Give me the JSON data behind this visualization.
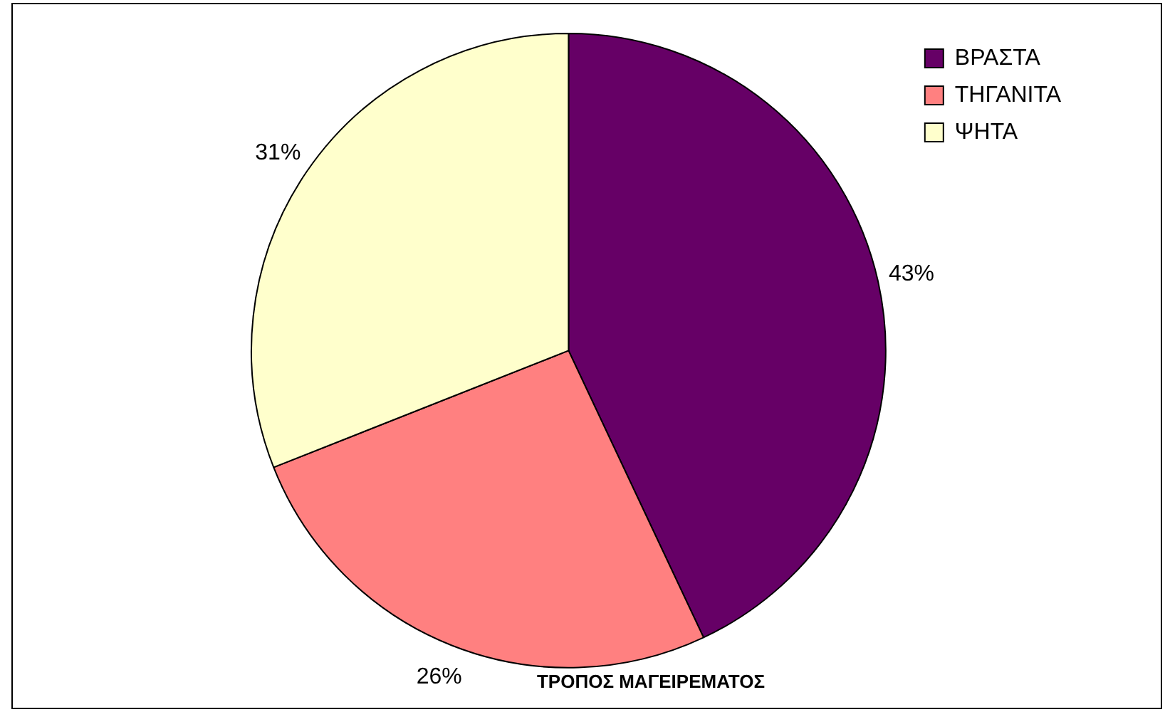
{
  "chart_data": {
    "type": "pie",
    "title": "ΤΡΟΠΟΣ ΜΑΓΕΙΡΕΜΑΤΟΣ",
    "categories": [
      "ΒΡΑΣΤΑ",
      "ΤΗΓΑΝΙΤΑ",
      "ΨΗΤΑ"
    ],
    "values": [
      43,
      26,
      31
    ],
    "colors": [
      "#660066",
      "#ff8080",
      "#ffffcc"
    ],
    "value_labels": [
      "43%",
      "26%",
      "31%"
    ],
    "legend": "top right"
  }
}
